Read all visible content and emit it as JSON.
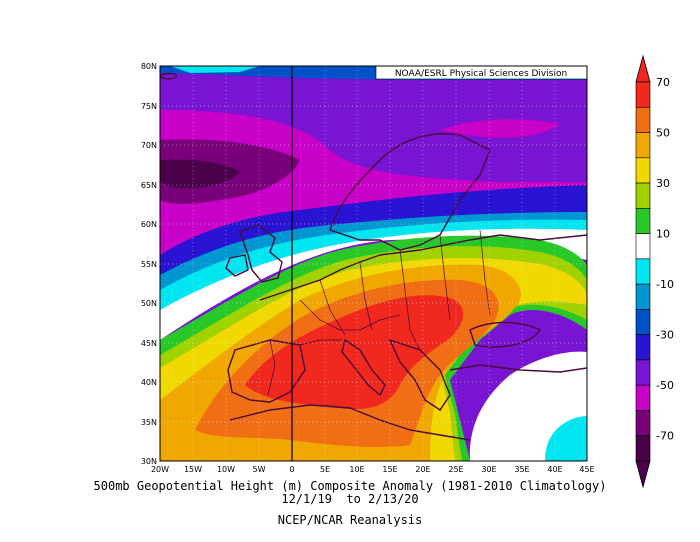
{
  "credit": "NOAA/ESRL Physical Sciences Division",
  "caption": {
    "line1": "500mb Geopotential Height (m) Composite Anomaly (1981-2010 Climatology)",
    "line2": "12/1/19  to 2/13/20",
    "line3": "NCEP/NCAR Reanalysis"
  },
  "map": {
    "lat_labels": [
      "80N",
      "75N",
      "70N",
      "65N",
      "60N",
      "55N",
      "50N",
      "45N",
      "40N",
      "35N",
      "30N"
    ],
    "lon_labels": [
      "20W",
      "15W",
      "10W",
      "5W",
      "0",
      "5E",
      "10E",
      "15E",
      "20E",
      "25E",
      "30E",
      "35E",
      "40E",
      "45E"
    ]
  },
  "colorbar": {
    "labels": [
      "70",
      "50",
      "30",
      "10",
      "-10",
      "-30",
      "-50",
      "-70"
    ],
    "colors": [
      "#f0281e",
      "#f06e14",
      "#f0a800",
      "#f0d800",
      "#a0d200",
      "#28c828",
      "#ffffff",
      "#00e6f0",
      "#0096d2",
      "#0050c8",
      "#2814d2",
      "#7814d2",
      "#c800c8",
      "#780078",
      "#4a004a"
    ]
  }
}
